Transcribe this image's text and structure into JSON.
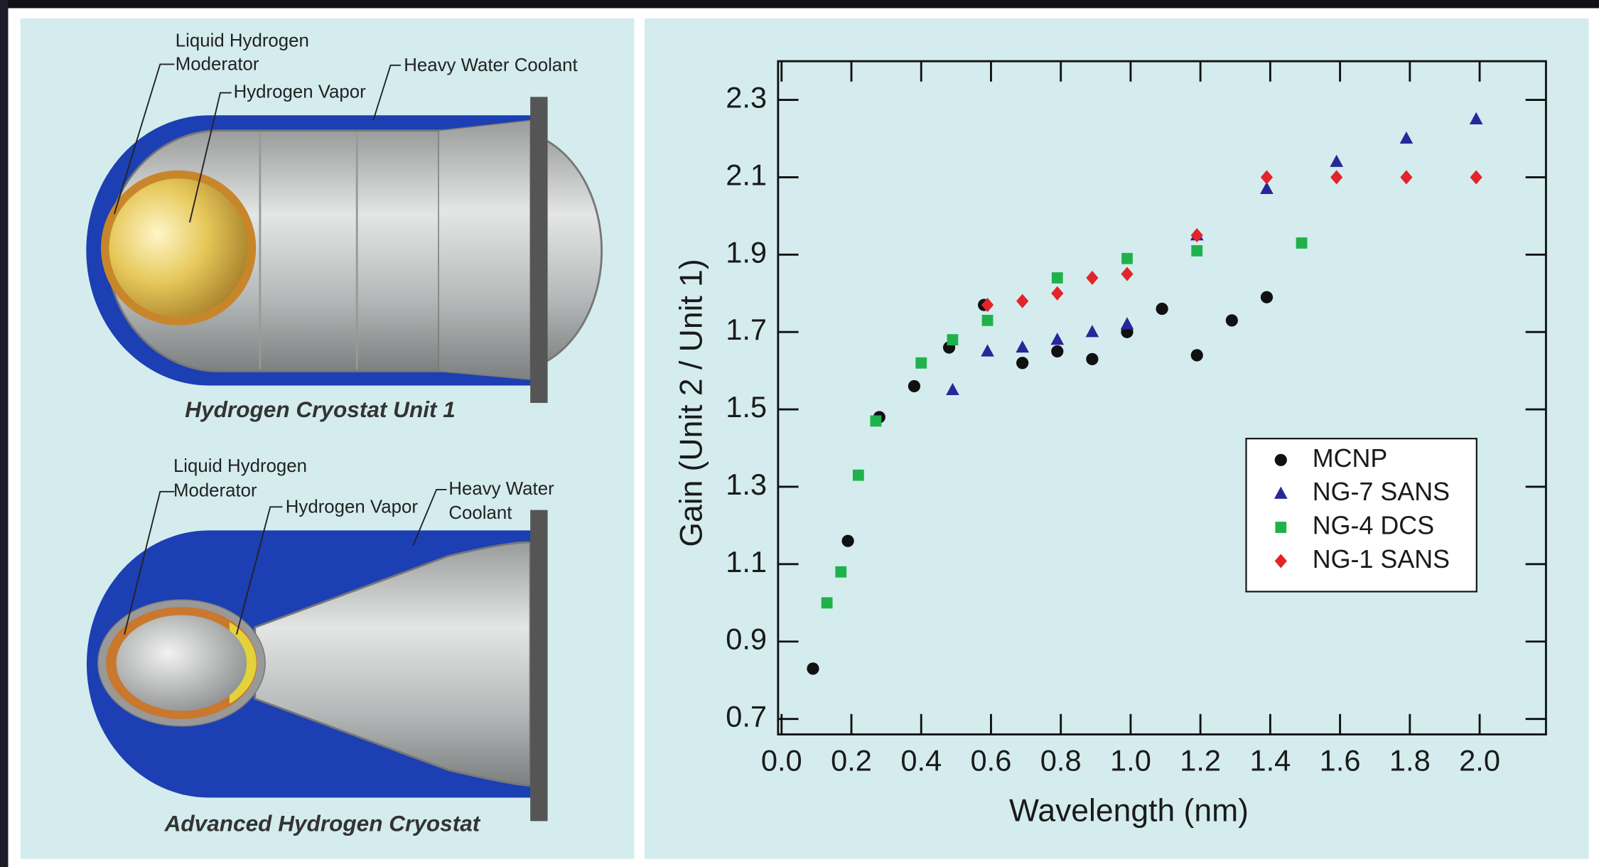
{
  "chart_data": {
    "type": "scatter",
    "x_label": "Wavelength (nm)",
    "y_label": "Gain (Unit 2 / Unit 1)",
    "xlim": [
      -0.01,
      2.19
    ],
    "ylim": [
      0.66,
      2.4
    ],
    "xticks": [
      {
        "value": 0,
        "label": "0.0"
      },
      0.2,
      0.4,
      0.6,
      0.8,
      {
        "value": 1,
        "label": "1.0"
      },
      1.2,
      1.4,
      1.6,
      1.8,
      {
        "value": 2,
        "label": "2.0"
      }
    ],
    "yticks": [
      0.7,
      0.9,
      1.1,
      1.3,
      1.5,
      1.7,
      1.9,
      2.1,
      2.3
    ],
    "legend": "right",
    "series": [
      {
        "name": "MCNP",
        "color": "#111111",
        "marker": "circle",
        "x": [
          0.09,
          0.19,
          0.28,
          0.38,
          0.48,
          0.58,
          0.69,
          0.79,
          0.89,
          0.99,
          1.09,
          1.19,
          1.29,
          1.39
        ],
        "values": [
          0.83,
          1.16,
          1.48,
          1.56,
          1.66,
          1.77,
          1.62,
          1.65,
          1.63,
          1.7,
          1.76,
          1.64,
          1.73,
          1.79
        ]
      },
      {
        "name": "NG-7 SANS",
        "color": "#27279a",
        "marker": "triangle",
        "x": [
          0.49,
          0.59,
          0.69,
          0.79,
          0.89,
          0.99,
          1.19,
          1.39,
          1.59,
          1.79,
          1.99
        ],
        "values": [
          1.55,
          1.65,
          1.66,
          1.68,
          1.7,
          1.72,
          1.95,
          2.07,
          2.14,
          2.2,
          2.25
        ]
      },
      {
        "name": "NG-4 DCS",
        "color": "#1fb24c",
        "marker": "square",
        "x": [
          0.13,
          0.17,
          0.22,
          0.27,
          0.4,
          0.49,
          0.59,
          0.79,
          0.99,
          1.19,
          1.49
        ],
        "values": [
          1.0,
          1.08,
          1.33,
          1.47,
          1.62,
          1.68,
          1.73,
          1.84,
          1.89,
          1.91,
          1.93
        ]
      },
      {
        "name": "NG-1 SANS",
        "color": "#e3242b",
        "marker": "diamond",
        "x": [
          0.59,
          0.69,
          0.79,
          0.89,
          0.99,
          1.19,
          1.39,
          1.59,
          1.79,
          1.99
        ],
        "values": [
          1.77,
          1.78,
          1.8,
          1.84,
          1.85,
          1.95,
          2.1,
          2.1,
          2.1,
          2.1
        ]
      }
    ]
  },
  "diagram": {
    "unit1": {
      "labels": [
        {
          "lines": [
            "Liquid Hydrogen",
            "Moderator"
          ]
        },
        {
          "lines": [
            "Hydrogen Vapor"
          ]
        },
        {
          "lines": [
            "Heavy Water Coolant"
          ]
        }
      ],
      "caption": "Hydrogen Cryostat Unit 1"
    },
    "unit2": {
      "labels": [
        {
          "lines": [
            "Liquid Hydrogen",
            "Moderator"
          ]
        },
        {
          "lines": [
            "Hydrogen Vapor"
          ]
        },
        {
          "lines": [
            "Heavy Water",
            "Coolant"
          ]
        }
      ],
      "caption": "Advanced Hydrogen Cryostat"
    }
  }
}
